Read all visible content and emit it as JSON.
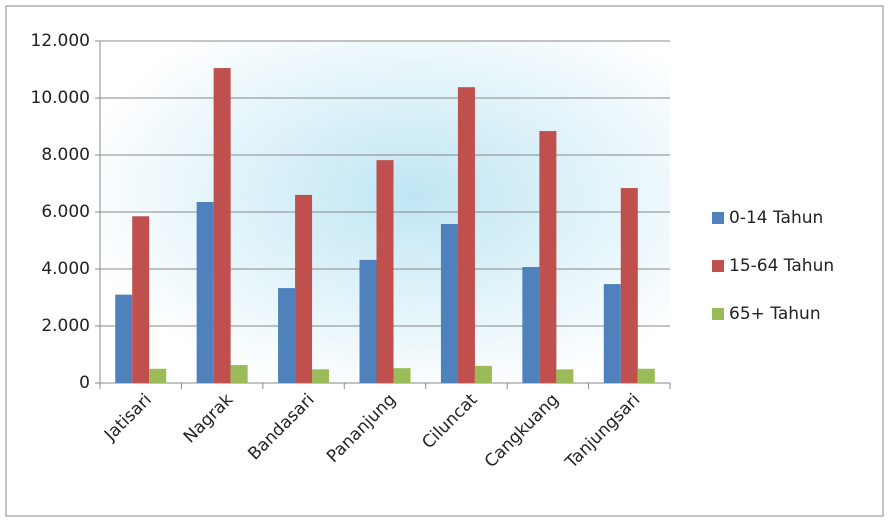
{
  "chart_data": {
    "type": "bar",
    "categories": [
      "Jatisari",
      "Nagrak",
      "Bandasari",
      "Pananjung",
      "Ciluncat",
      "Cangkuang",
      "Tanjungsari"
    ],
    "series": [
      {
        "name": "0-14 Tahun",
        "color": "#4f81bd",
        "values": [
          3100,
          6350,
          3330,
          4320,
          5580,
          4070,
          3470
        ]
      },
      {
        "name": "15-64 Tahun",
        "color": "#c0504d",
        "values": [
          5850,
          11050,
          6600,
          7820,
          10380,
          8840,
          6840
        ]
      },
      {
        "name": "65+ Tahun",
        "color": "#9bbb59",
        "values": [
          500,
          630,
          480,
          520,
          600,
          480,
          500
        ]
      }
    ],
    "ylim": [
      0,
      12000
    ],
    "yticks": [
      0,
      {
        "value": 2000,
        "label": "2.000"
      },
      {
        "value": 4000,
        "label": "4.000"
      },
      {
        "value": 6000,
        "label": "6.000"
      },
      {
        "value": 8000,
        "label": "8.000"
      },
      {
        "value": 10000,
        "label": "10.000"
      },
      {
        "value": 12000,
        "label": "12.000"
      }
    ],
    "grid": true,
    "legend": "right"
  }
}
